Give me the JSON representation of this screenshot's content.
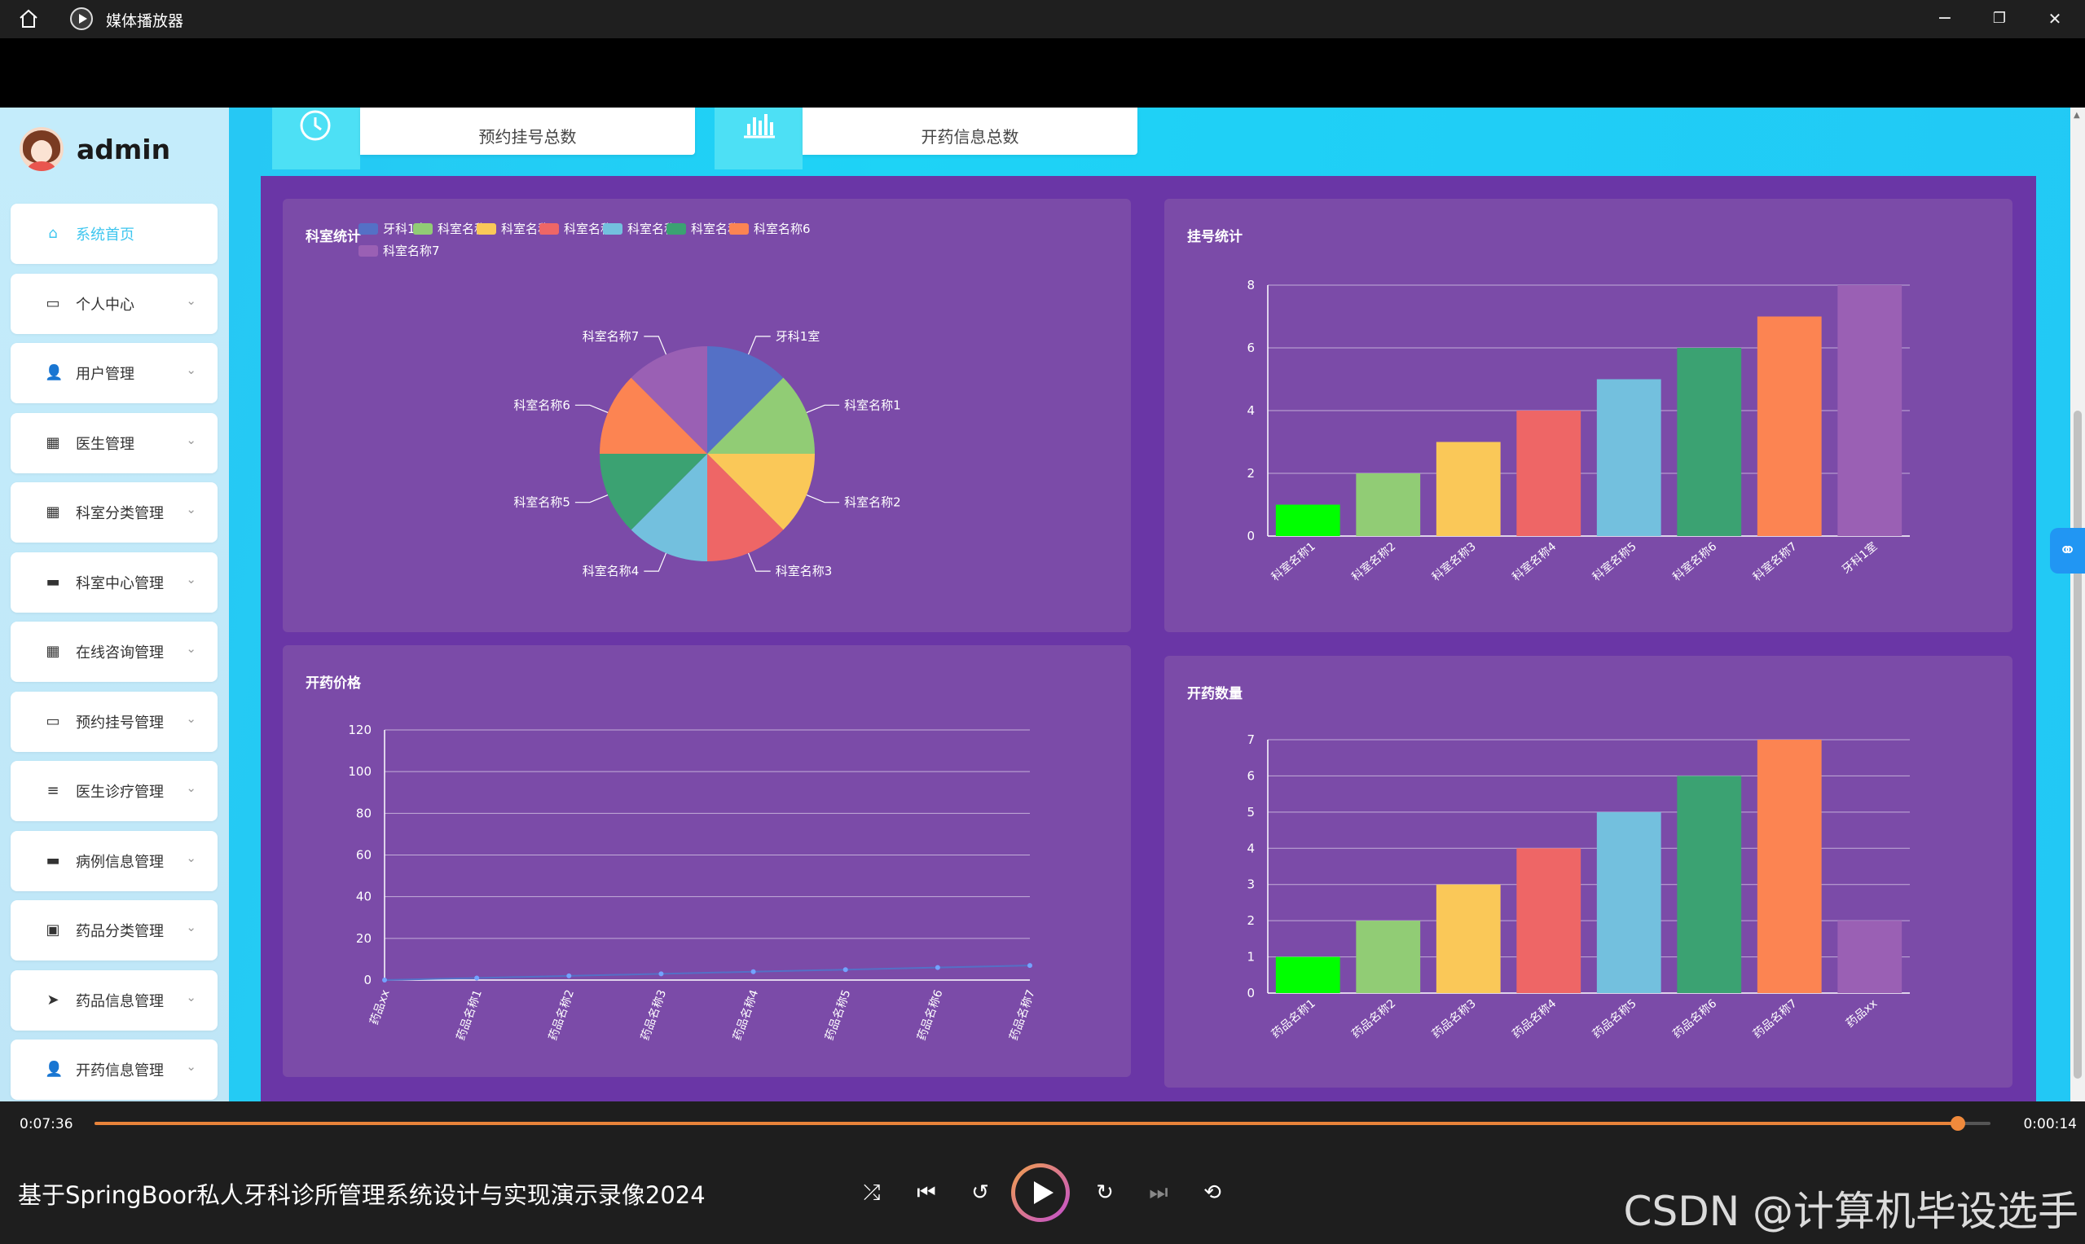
{
  "window": {
    "title": "媒体播放器",
    "minimize": "−",
    "restore": "❐",
    "close": "✕"
  },
  "user": {
    "name": "admin"
  },
  "menu": [
    {
      "label": "系统首页",
      "icon": "home-icon",
      "glyph": "⌂",
      "active": true
    },
    {
      "label": "个人中心",
      "icon": "calendar-icon",
      "glyph": "▭"
    },
    {
      "label": "用户管理",
      "icon": "user-icon",
      "glyph": "👤"
    },
    {
      "label": "医生管理",
      "icon": "grid-icon",
      "glyph": "▦"
    },
    {
      "label": "科室分类管理",
      "icon": "grid-icon",
      "glyph": "▦"
    },
    {
      "label": "科室中心管理",
      "icon": "briefcase-icon",
      "glyph": "▬"
    },
    {
      "label": "在线咨询管理",
      "icon": "grid-icon",
      "glyph": "▦"
    },
    {
      "label": "预约挂号管理",
      "icon": "monitor-icon",
      "glyph": "▭"
    },
    {
      "label": "医生诊疗管理",
      "icon": "list-icon",
      "glyph": "≡"
    },
    {
      "label": "病例信息管理",
      "icon": "case-icon",
      "glyph": "▬"
    },
    {
      "label": "药品分类管理",
      "icon": "clipboard-icon",
      "glyph": "▣"
    },
    {
      "label": "药品信息管理",
      "icon": "send-icon",
      "glyph": "➤"
    },
    {
      "label": "开药信息管理",
      "icon": "user-icon",
      "glyph": "👤"
    }
  ],
  "stats": [
    {
      "label": "预约挂号总数",
      "icon": "clock-icon"
    },
    {
      "label": "开药信息总数",
      "icon": "bar-chart-icon"
    }
  ],
  "colors": [
    "#5470c6",
    "#91cc75",
    "#fac858",
    "#ee6666",
    "#73c0de",
    "#3ba272",
    "#fc8452",
    "#9a60b4"
  ],
  "chart_data": [
    {
      "type": "pie",
      "title": "科室统计",
      "categories": [
        "牙科1室",
        "科室名称1",
        "科室名称2",
        "科室名称3",
        "科室名称4",
        "科室名称5",
        "科室名称6",
        "科室名称7"
      ],
      "values": [
        1,
        1,
        1,
        1,
        1,
        1,
        1,
        1
      ],
      "legend": "top"
    },
    {
      "type": "bar",
      "title": "挂号统计",
      "categories": [
        "科室名称1",
        "科室名称2",
        "科室名称3",
        "科室名称4",
        "科室名称5",
        "科室名称6",
        "科室名称7",
        "牙科1室"
      ],
      "values": [
        1,
        2,
        3,
        4,
        5,
        6,
        7,
        8
      ],
      "ylim": [
        0,
        8
      ],
      "yticks": [
        0,
        2,
        4,
        6,
        8
      ],
      "bar_colors": [
        "#00ff00",
        "#91cc75",
        "#fac858",
        "#ee6666",
        "#73c0de",
        "#3ba272",
        "#fc8452",
        "#9a60b4"
      ]
    },
    {
      "type": "line",
      "title": "开药价格",
      "categories": [
        "药品xx",
        "药品名称1",
        "药品名称2",
        "药品名称3",
        "药品名称4",
        "药品名称5",
        "药品名称6",
        "药品名称7"
      ],
      "values": [
        0,
        1,
        2,
        3,
        4,
        5,
        6,
        7
      ],
      "ylim": [
        0,
        120
      ],
      "yticks": [
        0,
        20,
        40,
        60,
        80,
        100,
        120
      ]
    },
    {
      "type": "bar",
      "title": "开药数量",
      "categories": [
        "药品名称1",
        "药品名称2",
        "药品名称3",
        "药品名称4",
        "药品名称5",
        "药品名称6",
        "药品名称7",
        "药品xx"
      ],
      "values": [
        1,
        2,
        3,
        4,
        5,
        6,
        7,
        2
      ],
      "ylim": [
        0,
        7
      ],
      "yticks": [
        0,
        1,
        2,
        3,
        4,
        5,
        6,
        7
      ],
      "bar_colors": [
        "#00ff00",
        "#91cc75",
        "#fac858",
        "#ee6666",
        "#73c0de",
        "#3ba272",
        "#fc8452",
        "#9a60b4"
      ]
    }
  ],
  "player": {
    "current_time": "0:07:36",
    "remaining_time": "0:00:14",
    "progress": 0.983,
    "video_title": "基于SpringBoor私人牙科诊所管理系统设计与实现演示录像2024",
    "watermark": "CSDN @计算机毕设选手",
    "controls": {
      "shuffle": "⤮",
      "prev": "⏮",
      "back10": "↺",
      "fwd30": "↻",
      "next": "⏭",
      "repeat": "⟲"
    }
  }
}
